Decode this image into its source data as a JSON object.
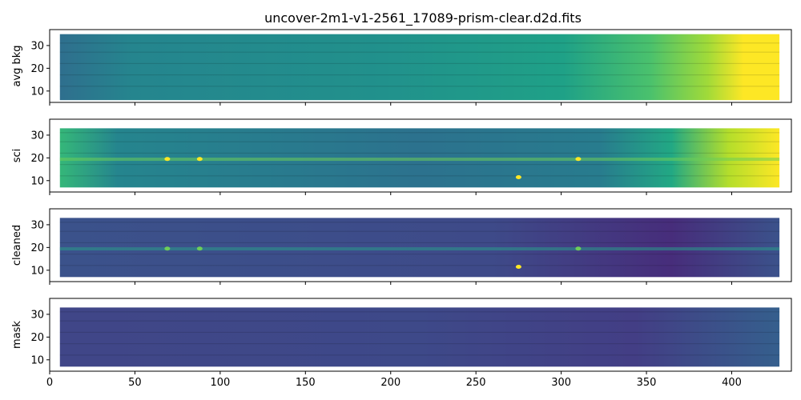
{
  "figure": {
    "title": "uncover-2m1-v1-2561_17089-prism-clear.d2d.fits"
  },
  "chart_data": {
    "type": "heatmap",
    "title": "uncover-2m1-v1-2561_17089-prism-clear.d2d.fits",
    "colormap": "viridis",
    "grid": false,
    "legend": "none",
    "shared_x": true,
    "xlim": [
      0,
      435
    ],
    "x_ticks": [
      0,
      50,
      100,
      150,
      200,
      250,
      300,
      350,
      400
    ],
    "panels": [
      {
        "ylabel": "avg bkg",
        "ylim": [
          5,
          37
        ],
        "y_ticks": [
          10,
          20,
          30
        ],
        "x_tick_labels_shown": false,
        "data_x_range": [
          6,
          428
        ],
        "data_y_range": [
          6,
          35
        ],
        "description_values": "background rises from low on the left to saturated high beyond x~380"
      },
      {
        "ylabel": "sci",
        "ylim": [
          5,
          37
        ],
        "y_ticks": [
          10,
          20,
          30
        ],
        "x_tick_labels_shown": false,
        "data_x_range": [
          6,
          428
        ],
        "data_y_range": [
          7,
          33
        ],
        "trace_y": 19.5,
        "bright_spots_x": [
          69,
          88,
          310,
          275
        ]
      },
      {
        "ylabel": "cleaned",
        "ylim": [
          5,
          37
        ],
        "y_ticks": [
          10,
          20,
          30
        ],
        "x_tick_labels_shown": false,
        "data_x_range": [
          6,
          428
        ],
        "data_y_range": [
          7,
          33
        ],
        "trace_y": 19.5,
        "bright_spots_x": [
          69,
          88,
          310,
          275
        ]
      },
      {
        "ylabel": "mask",
        "ylim": [
          5,
          37
        ],
        "y_ticks": [
          10,
          20,
          30
        ],
        "x_tick_labels_shown": true,
        "data_x_range": [
          6,
          428
        ],
        "data_y_range": [
          7,
          33
        ]
      }
    ]
  }
}
